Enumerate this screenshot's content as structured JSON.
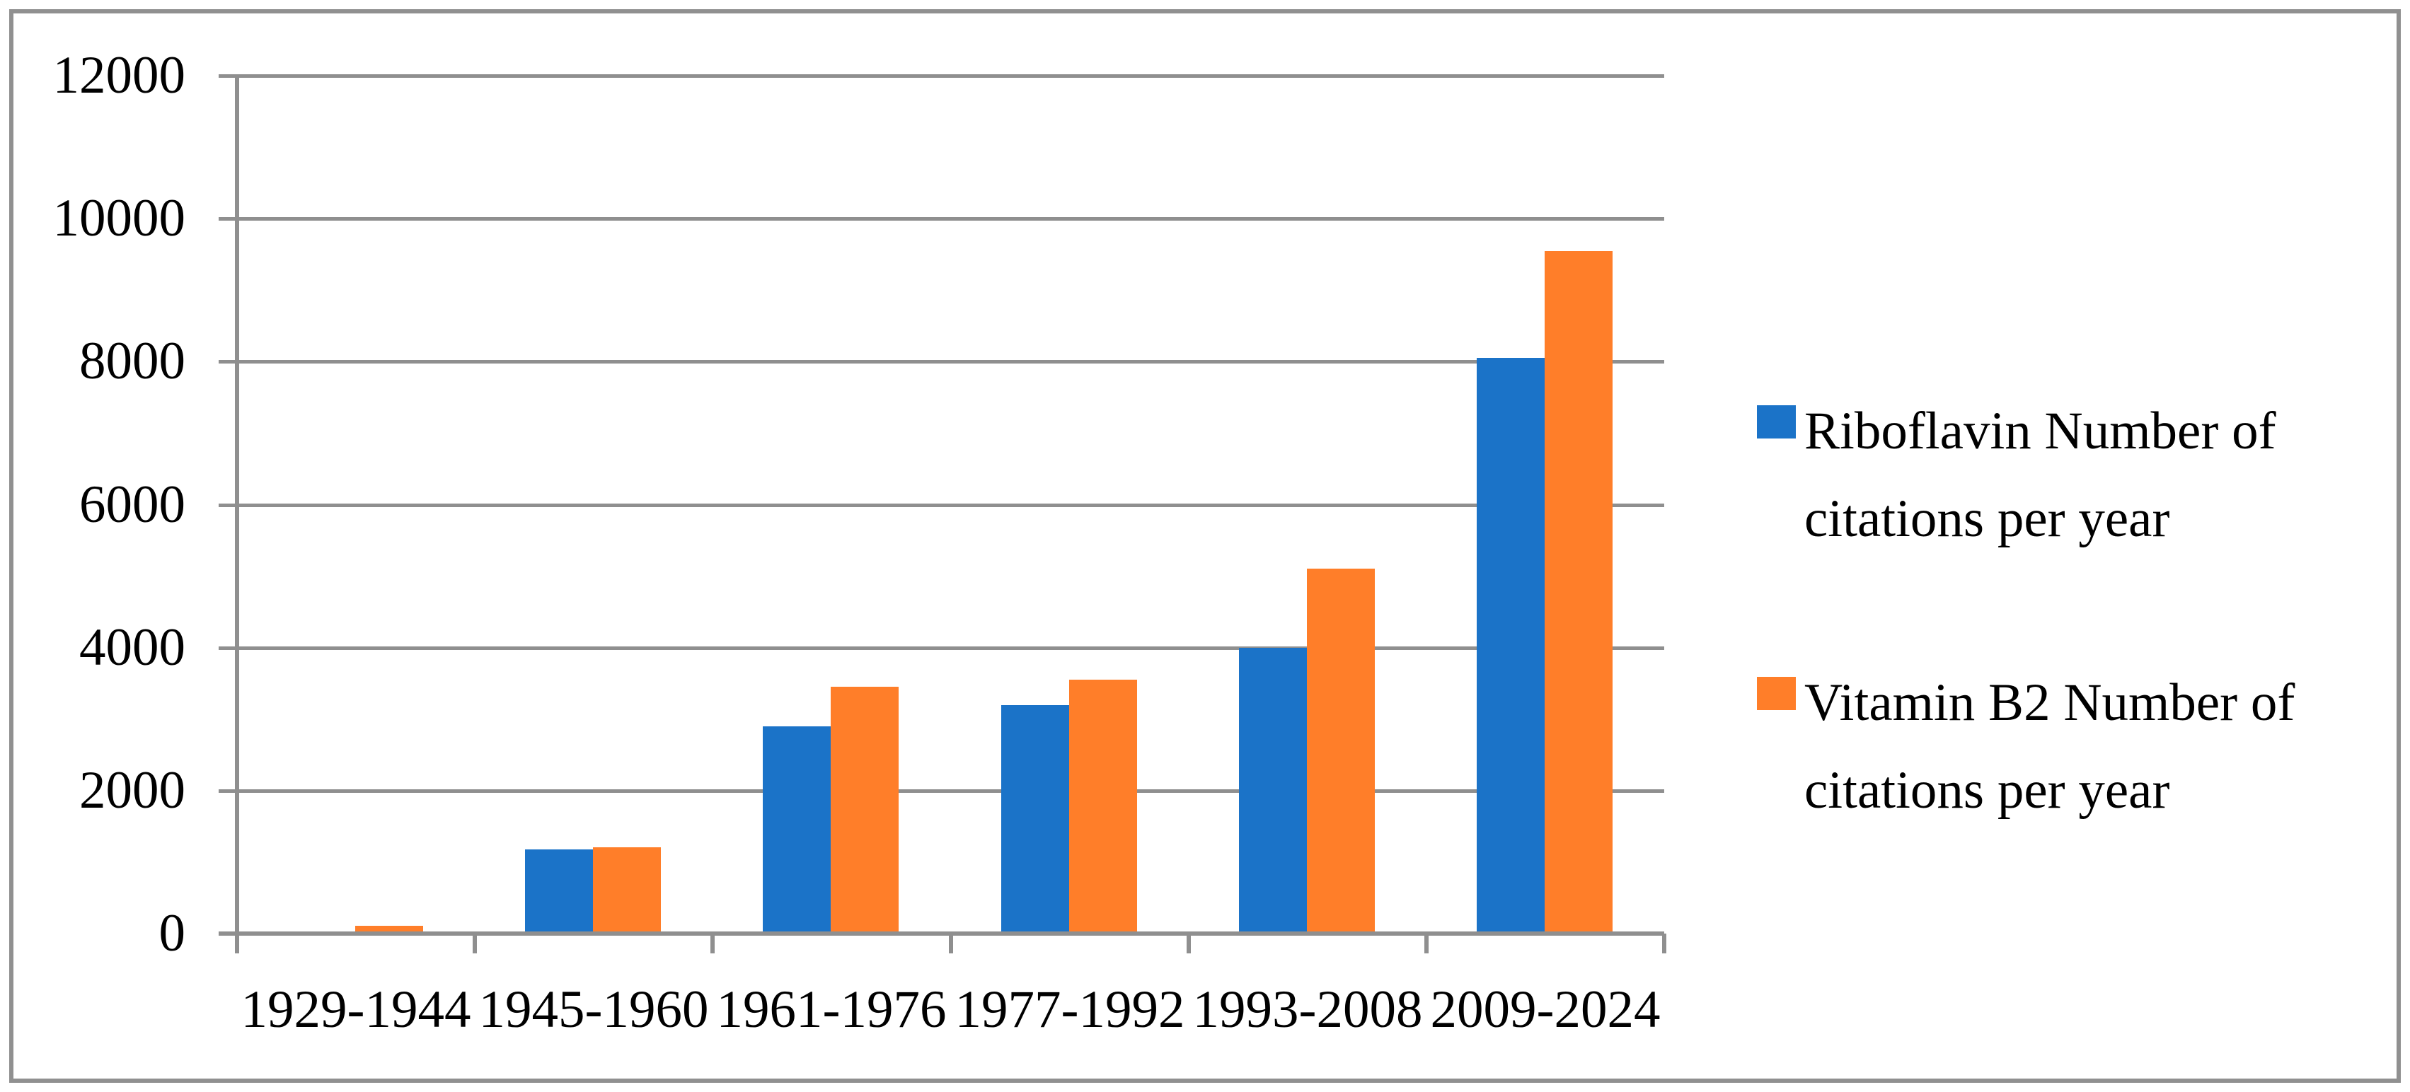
{
  "chart_data": {
    "type": "bar",
    "categories": [
      "1929-1944",
      "1945-1960",
      "1961-1976",
      "1977-1992",
      "1993-2008",
      "2009-2024"
    ],
    "series": [
      {
        "name": "Riboflavin Number of citations per year",
        "color": "#1B73C8",
        "values": [
          0,
          1180,
          2900,
          3200,
          4000,
          8050
        ]
      },
      {
        "name": "Vitamin B2 Number of citations per year",
        "color": "#FF7E29",
        "values": [
          110,
          1210,
          3450,
          3550,
          5100,
          9550
        ]
      }
    ],
    "title": "",
    "xlabel": "",
    "ylabel": "",
    "ylim": [
      0,
      12000
    ],
    "ytick_interval": 2000,
    "ytick_labels": [
      "0",
      "2000",
      "4000",
      "6000",
      "8000",
      "10000",
      "12000"
    ],
    "grid": true,
    "gridline_color": "#8F8F8F",
    "legend_position": "right",
    "frame_border_color": "#909090",
    "background_color": "#ffffff"
  }
}
